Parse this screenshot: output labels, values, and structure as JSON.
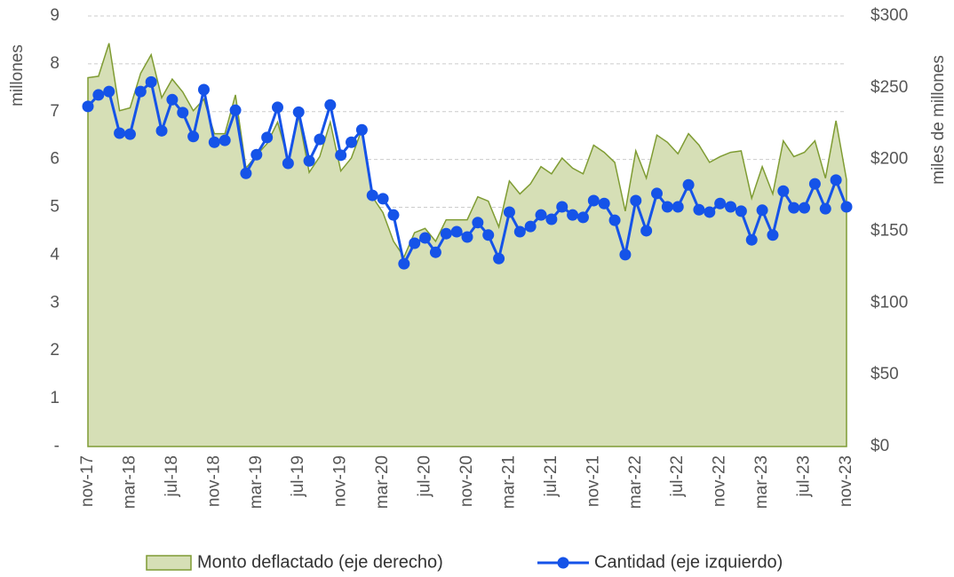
{
  "chart_data": {
    "type": "dual-axis-area-line",
    "y_label": "millones",
    "y2_label": "miles de millones",
    "categories": [
      "nov-17",
      null,
      null,
      null,
      "mar-18",
      null,
      null,
      null,
      "jul-18",
      null,
      null,
      null,
      "nov-18",
      null,
      null,
      null,
      "mar-19",
      null,
      null,
      null,
      "jul-19",
      null,
      null,
      null,
      "nov-19",
      null,
      null,
      null,
      "mar-20",
      null,
      null,
      null,
      "jul-20",
      null,
      null,
      null,
      "nov-20",
      null,
      null,
      null,
      "mar-21",
      null,
      null,
      null,
      "jul-21",
      null,
      null,
      null,
      "nov-21",
      null,
      null,
      null,
      "mar-22",
      null,
      null,
      null,
      "jul-22",
      null,
      null,
      null,
      "nov-22",
      null,
      null,
      null,
      "mar-23",
      null,
      null,
      null,
      "jul-23",
      null,
      null,
      null,
      "nov-23"
    ],
    "series": [
      {
        "name": "Monto deflactado (eje derecho)",
        "kind": "area",
        "axis": "y2",
        "color": "#7f9c33",
        "fill": "#d6dfb6",
        "values": [
          257,
          258,
          281,
          234,
          236,
          260,
          273,
          243,
          256,
          247,
          234,
          242,
          218,
          218,
          245,
          194,
          203,
          211,
          226,
          200,
          230,
          191,
          202,
          226,
          192,
          201,
          221,
          174,
          163,
          143,
          132,
          149,
          152,
          143,
          158,
          158,
          158,
          174,
          171,
          153,
          185,
          176,
          183,
          195,
          190,
          201,
          194,
          190,
          210,
          205,
          198,
          164,
          206,
          187,
          217,
          212,
          204,
          218,
          210,
          198,
          202,
          205,
          206,
          173,
          195,
          176,
          213,
          202,
          205,
          213,
          187,
          227,
          186
        ]
      },
      {
        "name": "Cantidad (eje izquierdo)",
        "kind": "line",
        "axis": "y",
        "color": "#1553e8",
        "values": [
          7.11,
          7.35,
          7.42,
          6.55,
          6.53,
          7.42,
          7.62,
          6.6,
          7.25,
          6.98,
          6.48,
          7.46,
          6.36,
          6.4,
          7.03,
          5.71,
          6.1,
          6.46,
          7.09,
          5.92,
          6.99,
          5.97,
          6.42,
          7.14,
          6.09,
          6.36,
          6.62,
          5.25,
          5.18,
          4.84,
          3.82,
          4.25,
          4.36,
          4.06,
          4.45,
          4.49,
          4.38,
          4.68,
          4.42,
          3.93,
          4.9,
          4.49,
          4.6,
          4.84,
          4.75,
          5.01,
          4.84,
          4.79,
          5.14,
          5.08,
          4.73,
          4.01,
          5.14,
          4.51,
          5.29,
          5.01,
          5.01,
          5.47,
          4.95,
          4.9,
          5.08,
          5.01,
          4.92,
          4.32,
          4.94,
          4.42,
          5.34,
          4.99,
          4.99,
          5.49,
          4.97,
          5.57,
          5.01
        ]
      }
    ],
    "ylim": [
      0,
      9
    ],
    "yticks": [
      {
        "value": 0,
        "label": "-"
      },
      1,
      2,
      3,
      4,
      5,
      6,
      7,
      8,
      9
    ],
    "y2lim": [
      0,
      300
    ],
    "y2ticks": [
      {
        "value": 0,
        "label": "$0"
      },
      {
        "value": 50,
        "label": "$50"
      },
      {
        "value": 100,
        "label": "$100"
      },
      {
        "value": 150,
        "label": "$150"
      },
      {
        "value": 200,
        "label": "$200"
      },
      {
        "value": 250,
        "label": "$250"
      },
      {
        "value": 300,
        "label": "$300"
      }
    ],
    "grid": true
  }
}
